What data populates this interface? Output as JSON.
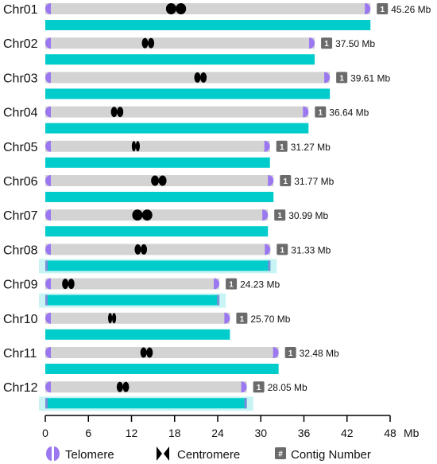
{
  "colors": {
    "chromosome_bar": "#d3d3d3",
    "contig_bar": "#00cccc",
    "contig_halo": "#c8f4f4",
    "contig_edge": "#7b8fd6",
    "telomere": "#9b78f0",
    "centromere": "#000000",
    "contig_badge": "#6b6b6b"
  },
  "chromosomes": [
    {
      "name": "Chr01",
      "length": 45.26,
      "size_label": "45.26 Mb",
      "centromere": 18.2,
      "cen_size": "large",
      "contigs": "1",
      "halo": false
    },
    {
      "name": "Chr02",
      "length": 37.5,
      "size_label": "37.50 Mb",
      "centromere": 14.3,
      "cen_size": "small",
      "contigs": "1",
      "halo": false
    },
    {
      "name": "Chr03",
      "length": 39.61,
      "size_label": "39.61 Mb",
      "centromere": 21.6,
      "cen_size": "small",
      "contigs": "1",
      "halo": false
    },
    {
      "name": "Chr04",
      "length": 36.64,
      "size_label": "36.64 Mb",
      "centromere": 10.0,
      "cen_size": "small",
      "contigs": "1",
      "halo": false
    },
    {
      "name": "Chr05",
      "length": 31.27,
      "size_label": "31.27 Mb",
      "centromere": 12.6,
      "cen_size": "tiny",
      "contigs": "1",
      "halo": false
    },
    {
      "name": "Chr06",
      "length": 31.77,
      "size_label": "31.77 Mb",
      "centromere": 15.8,
      "cen_size": "medium",
      "contigs": "1",
      "halo": false
    },
    {
      "name": "Chr07",
      "length": 30.99,
      "size_label": "30.99 Mb",
      "centromere": 13.5,
      "cen_size": "large",
      "contigs": "1",
      "halo": false
    },
    {
      "name": "Chr08",
      "length": 31.33,
      "size_label": "31.33 Mb",
      "centromere": 13.3,
      "cen_size": "small",
      "contigs": "1",
      "halo": true
    },
    {
      "name": "Chr09",
      "length": 24.23,
      "size_label": "24.23 Mb",
      "centromere": 3.2,
      "cen_size": "small",
      "contigs": "1",
      "halo": true
    },
    {
      "name": "Chr10",
      "length": 25.7,
      "size_label": "25.70 Mb",
      "centromere": 9.3,
      "cen_size": "tiny",
      "contigs": "1",
      "halo": false
    },
    {
      "name": "Chr11",
      "length": 32.48,
      "size_label": "32.48 Mb",
      "centromere": 14.1,
      "cen_size": "small",
      "contigs": "1",
      "halo": false
    },
    {
      "name": "Chr12",
      "length": 28.05,
      "size_label": "28.05 Mb",
      "centromere": 10.8,
      "cen_size": "small",
      "contigs": "1",
      "halo": true
    }
  ],
  "axis": {
    "ticks": [
      "0",
      "6",
      "12",
      "18",
      "24",
      "30",
      "36",
      "42",
      "48"
    ],
    "tick_values": [
      0,
      6,
      12,
      18,
      24,
      30,
      36,
      42,
      48
    ],
    "max": 48,
    "unit": "Mb"
  },
  "legend": {
    "telomere": "Telomere",
    "centromere": "Centromere",
    "contig_badge": "#",
    "contig": "Contig Number"
  }
}
